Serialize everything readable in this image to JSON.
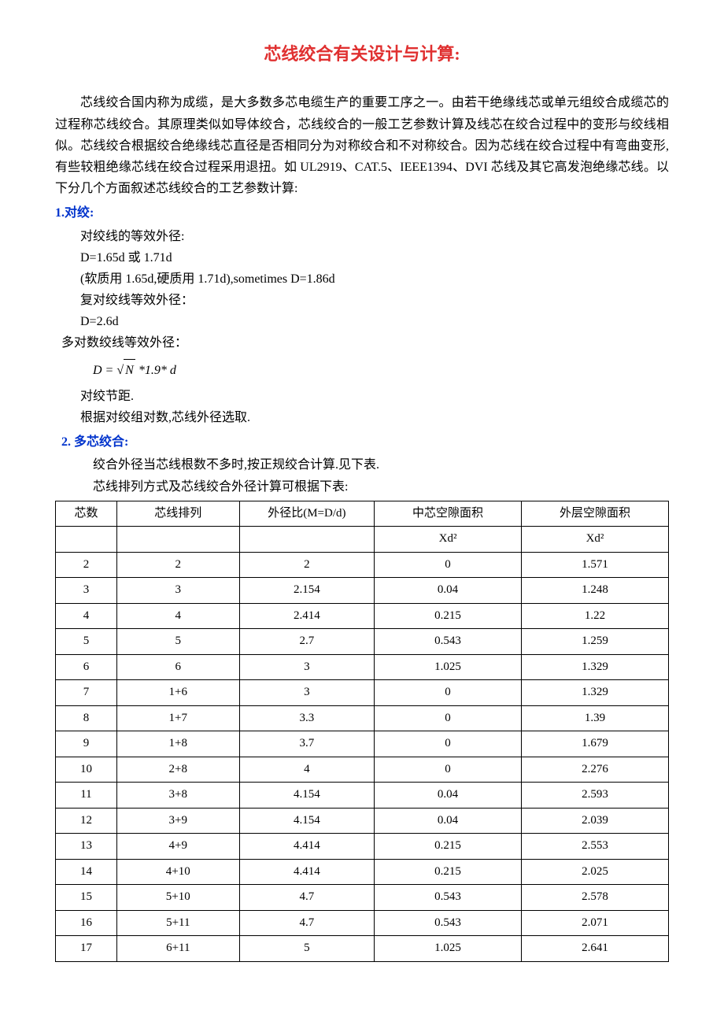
{
  "title": "芯线绞合有关设计与计算:",
  "intro": "芯线绞合国内称为成缆，是大多数多芯电缆生产的重要工序之一。由若干绝缘线芯或单元组绞合成缆芯的过程称芯线绞合。其原理类似如导体绞合，芯线绞合的一般工艺参数计算及线芯在绞合过程中的变形与绞线相似。芯线绞合根据绞合绝缘线芯直径是否相同分为对称绞合和不对称绞合。因为芯线在绞合过程中有弯曲变形,有些较粗绝缘芯线在绞合过程采用退扭。如 UL2919、CAT.5、IEEE1394、DVI 芯线及其它高发泡绝缘芯线。以下分几个方面叙述芯线绞合的工艺参数计算:",
  "sec1": {
    "head": "1.对绞:",
    "l1": "对绞线的等效外径:",
    "l2": "D=1.65d 或 1.71d",
    "l3": "(软质用 1.65d,硬质用 1.71d),sometimes D=1.86d",
    "l4": "复对绞线等效外径：",
    "l5": "D=2.6d",
    "l6": "多对数绞线等效外径：",
    "formula_prefix": "D = ",
    "formula_sqrt": "N",
    "formula_suffix": " *1.9* d",
    "l7": "对绞节距.",
    "l8": "根据对绞组对数,芯线外径选取."
  },
  "sec2": {
    "head": "2. 多芯绞合:",
    "l1": "绞合外径当芯线根数不多时,按正规绞合计算.见下表.",
    "l2": "芯线排列方式及芯线绞合外径计算可根据下表:"
  },
  "table": {
    "columns": [
      "芯数",
      "芯线排列",
      "外径比(M=D/d)",
      "中芯空隙面积",
      "外层空隙面积"
    ],
    "sub": [
      "",
      "",
      "",
      "Xd²",
      "Xd²"
    ],
    "col_widths": [
      "10%",
      "20%",
      "22%",
      "24%",
      "24%"
    ],
    "rows": [
      [
        "2",
        "2",
        "2",
        "0",
        "1.571"
      ],
      [
        "3",
        "3",
        "2.154",
        "0.04",
        "1.248"
      ],
      [
        "4",
        "4",
        "2.414",
        "0.215",
        "1.22"
      ],
      [
        "5",
        "5",
        "2.7",
        "0.543",
        "1.259"
      ],
      [
        "6",
        "6",
        "3",
        "1.025",
        "1.329"
      ],
      [
        "7",
        "1+6",
        "3",
        "0",
        "1.329"
      ],
      [
        "8",
        "1+7",
        "3.3",
        "0",
        "1.39"
      ],
      [
        "9",
        "1+8",
        "3.7",
        "0",
        "1.679"
      ],
      [
        "10",
        "2+8",
        "4",
        "0",
        "2.276"
      ],
      [
        "11",
        "3+8",
        "4.154",
        "0.04",
        "2.593"
      ],
      [
        "12",
        "3+9",
        "4.154",
        "0.04",
        "2.039"
      ],
      [
        "13",
        "4+9",
        "4.414",
        "0.215",
        "2.553"
      ],
      [
        "14",
        "4+10",
        "4.414",
        "0.215",
        "2.025"
      ],
      [
        "15",
        "5+10",
        "4.7",
        "0.543",
        "2.578"
      ],
      [
        "16",
        "5+11",
        "4.7",
        "0.543",
        "2.071"
      ],
      [
        "17",
        "6+11",
        "5",
        "1.025",
        "2.641"
      ]
    ]
  },
  "style": {
    "title_color": "#e03030",
    "section_head_color": "#0033cc",
    "body_fontsize": 16,
    "title_fontsize": 22,
    "table_fontsize": 15,
    "border_color": "#000000",
    "background": "#ffffff"
  }
}
